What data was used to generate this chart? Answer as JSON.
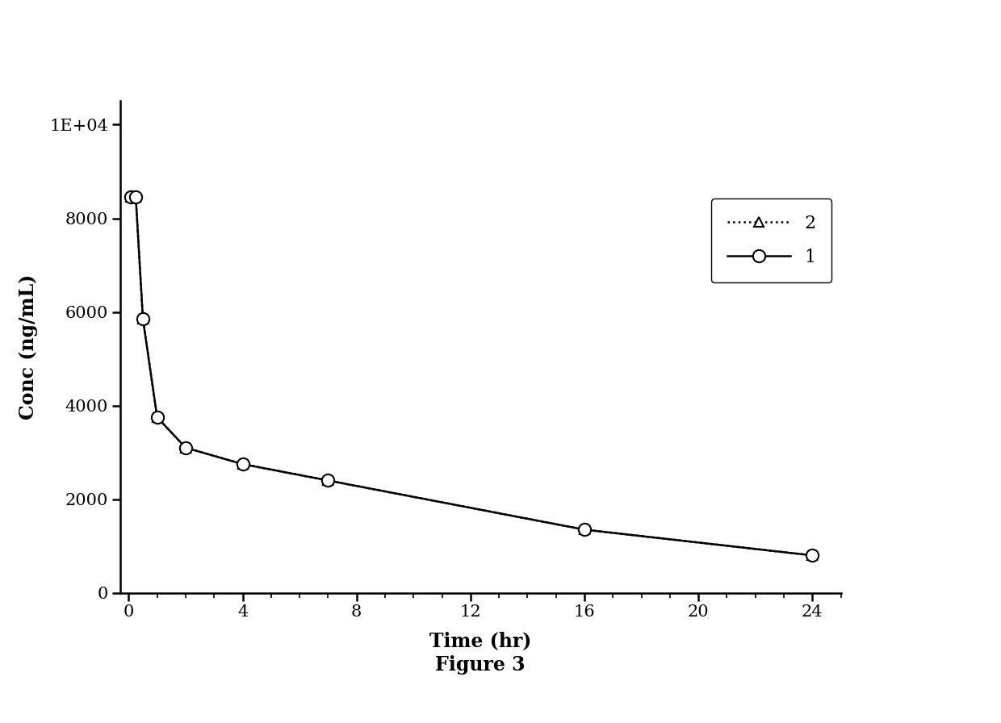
{
  "series1": {
    "label": "1",
    "x": [
      0.083,
      0.25,
      0.5,
      1,
      2,
      4,
      7,
      16,
      24
    ],
    "y": [
      8450,
      8450,
      5850,
      3750,
      3100,
      2750,
      2400,
      1350,
      800
    ],
    "linestyle": "-",
    "marker": "o",
    "color": "#000000",
    "linewidth": 1.8,
    "markersize": 11,
    "markerfacecolor": "white"
  },
  "series2": {
    "label": "2",
    "x": [
      0.083,
      0.25,
      0.5,
      1,
      2,
      4,
      7,
      16,
      24
    ],
    "y": [
      8450,
      8450,
      5850,
      3750,
      3100,
      2750,
      2400,
      1350,
      800
    ],
    "linestyle": ":",
    "marker": "^",
    "color": "#000000",
    "linewidth": 1.8,
    "markersize": 9,
    "markerfacecolor": "white",
    "dashes": [
      2,
      3
    ]
  },
  "xlabel": "Time (hr)",
  "ylabel": "Conc (ng/mL)",
  "figure_label": "Figure 3",
  "xlim": [
    -0.3,
    25
  ],
  "ylim": [
    0,
    10500
  ],
  "xticks": [
    0,
    4,
    8,
    12,
    16,
    20,
    24
  ],
  "yticks": [
    0,
    2000,
    4000,
    6000,
    8000,
    10000
  ],
  "ytick_labels": [
    "0",
    "2000",
    "4000",
    "6000",
    "8000",
    "1E+04"
  ],
  "background_color": "#ffffff",
  "axis_label_fontsize": 17,
  "tick_fontsize": 15,
  "legend_fontsize": 16
}
